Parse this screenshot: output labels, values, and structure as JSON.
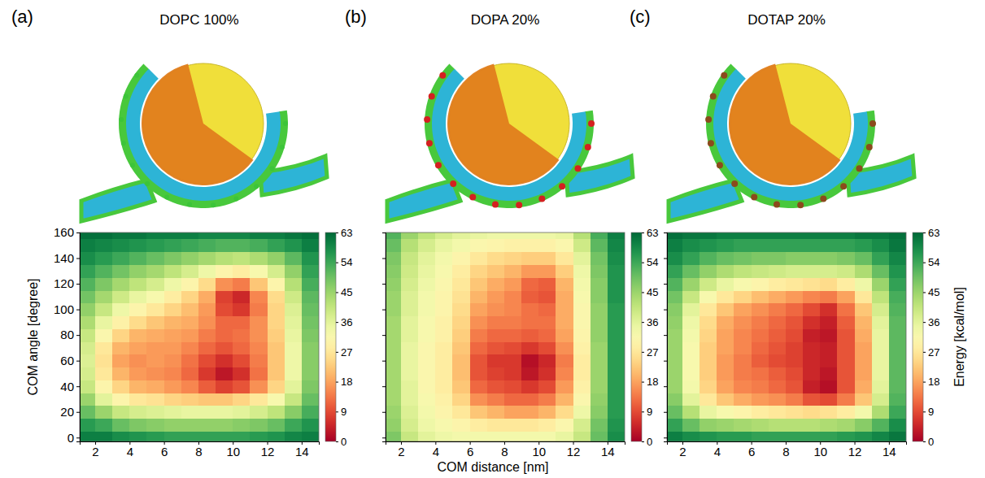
{
  "chart_data": [
    {
      "type": "heatmap",
      "title": "DOPC 100%",
      "annotations": [
        "(a)"
      ],
      "y_label": "COM angle [degree]",
      "xlim": [
        1.1,
        15
      ],
      "xticks": [
        2,
        4,
        6,
        8,
        10,
        12,
        14
      ],
      "ylim": [
        -3,
        160
      ],
      "yticks": [
        0,
        20,
        40,
        60,
        80,
        100,
        120,
        140,
        160
      ],
      "x": [
        1.5,
        2.5,
        3.5,
        4.5,
        5.5,
        6.5,
        7.5,
        8.5,
        9.5,
        10.5,
        11.5,
        12.5,
        13.5,
        14.5
      ],
      "y": [
        0,
        10,
        20,
        30,
        40,
        50,
        60,
        70,
        80,
        90,
        100,
        110,
        120,
        130,
        140,
        150,
        160
      ],
      "z": [
        [
          60,
          60,
          58,
          57,
          56,
          55,
          55,
          55,
          55,
          55,
          56,
          57,
          59,
          60
        ],
        [
          56,
          54,
          50,
          48,
          47,
          46,
          46,
          46,
          46,
          47,
          48,
          50,
          54,
          57
        ],
        [
          50,
          45,
          40,
          38,
          37,
          36,
          35,
          35,
          35,
          36,
          38,
          41,
          47,
          53
        ],
        [
          45,
          36,
          30,
          27,
          26,
          24,
          23,
          22,
          22,
          24,
          27,
          32,
          40,
          50
        ],
        [
          40,
          30,
          24,
          20,
          19,
          17,
          15,
          11,
          8,
          10,
          16,
          24,
          36,
          48
        ],
        [
          38,
          27,
          20,
          17,
          16,
          15,
          12,
          7,
          3,
          6,
          13,
          22,
          34,
          47
        ],
        [
          37,
          26,
          18,
          16,
          17,
          16,
          13,
          9,
          6,
          9,
          14,
          22,
          34,
          47
        ],
        [
          38,
          27,
          20,
          18,
          17,
          17,
          15,
          12,
          10,
          12,
          15,
          22,
          34,
          47
        ],
        [
          40,
          31,
          24,
          20,
          19,
          18,
          17,
          14,
          12,
          13,
          16,
          23,
          35,
          48
        ],
        [
          43,
          35,
          29,
          25,
          22,
          20,
          19,
          16,
          12,
          12,
          16,
          24,
          36,
          49
        ],
        [
          46,
          40,
          34,
          30,
          27,
          24,
          21,
          17,
          9,
          7,
          14,
          24,
          37,
          50
        ],
        [
          49,
          44,
          39,
          35,
          32,
          28,
          24,
          19,
          8,
          5,
          15,
          25,
          39,
          51
        ],
        [
          52,
          48,
          44,
          41,
          38,
          34,
          30,
          25,
          16,
          14,
          22,
          30,
          42,
          53
        ],
        [
          55,
          52,
          49,
          46,
          44,
          41,
          38,
          34,
          30,
          28,
          32,
          38,
          46,
          55
        ],
        [
          58,
          56,
          54,
          52,
          50,
          48,
          46,
          44,
          42,
          41,
          43,
          46,
          51,
          57
        ],
        [
          60,
          59,
          58,
          57,
          56,
          55,
          54,
          53,
          52,
          52,
          53,
          55,
          57,
          60
        ],
        [
          62,
          62,
          61,
          61,
          60,
          60,
          60,
          59,
          59,
          59,
          60,
          60,
          61,
          62
        ]
      ],
      "colorbar": {
        "range": [
          0,
          63
        ],
        "ticks": [
          0,
          9,
          18,
          27,
          36,
          45,
          54,
          63
        ]
      }
    },
    {
      "type": "heatmap",
      "title": "DOPA 20%",
      "annotations": [
        "(b)"
      ],
      "x_label": "COM distance [nm]",
      "tick_labels": "x",
      "xlim": [
        1.1,
        15
      ],
      "xticks": [
        2,
        4,
        6,
        8,
        10,
        12,
        14
      ],
      "ylim": [
        -3,
        160
      ],
      "yticks": [
        0,
        20,
        40,
        60,
        80,
        100,
        120,
        140,
        160
      ],
      "x": [
        1.5,
        2.5,
        3.5,
        4.5,
        5.5,
        6.5,
        7.5,
        8.5,
        9.5,
        10.5,
        11.5,
        12.5,
        13.5,
        14.5
      ],
      "y": [
        0,
        10,
        20,
        30,
        40,
        50,
        60,
        70,
        80,
        90,
        100,
        110,
        120,
        130,
        140,
        150,
        160
      ],
      "z": [
        [
          48,
          40,
          36,
          34,
          33,
          33,
          33,
          33,
          33,
          33,
          35,
          40,
          50,
          58
        ],
        [
          46,
          38,
          34,
          32,
          30,
          28,
          27,
          27,
          27,
          28,
          31,
          38,
          49,
          57
        ],
        [
          45,
          37,
          33,
          30,
          27,
          22,
          20,
          18,
          18,
          20,
          25,
          34,
          47,
          56
        ],
        [
          44,
          36,
          32,
          29,
          24,
          16,
          14,
          12,
          12,
          14,
          20,
          31,
          46,
          56
        ],
        [
          44,
          36,
          31,
          28,
          22,
          12,
          10,
          9,
          7,
          9,
          17,
          29,
          45,
          56
        ],
        [
          44,
          35,
          31,
          28,
          21,
          10,
          8,
          7,
          3,
          6,
          15,
          28,
          45,
          56
        ],
        [
          44,
          35,
          31,
          28,
          21,
          10,
          7,
          7,
          2,
          5,
          14,
          28,
          45,
          56
        ],
        [
          44,
          35,
          31,
          28,
          22,
          12,
          10,
          9,
          7,
          9,
          16,
          29,
          45,
          56
        ],
        [
          44,
          36,
          32,
          29,
          23,
          14,
          12,
          12,
          11,
          12,
          18,
          30,
          46,
          56
        ],
        [
          44,
          36,
          32,
          29,
          24,
          16,
          14,
          14,
          13,
          13,
          19,
          31,
          46,
          56
        ],
        [
          45,
          37,
          33,
          30,
          25,
          18,
          16,
          15,
          13,
          12,
          19,
          31,
          46,
          56
        ],
        [
          45,
          37,
          33,
          30,
          26,
          20,
          17,
          15,
          11,
          10,
          19,
          32,
          47,
          57
        ],
        [
          46,
          38,
          34,
          31,
          27,
          22,
          19,
          17,
          12,
          11,
          20,
          33,
          47,
          57
        ],
        [
          47,
          39,
          35,
          32,
          28,
          24,
          22,
          20,
          17,
          17,
          23,
          34,
          48,
          57
        ],
        [
          48,
          40,
          36,
          33,
          30,
          27,
          25,
          24,
          23,
          23,
          27,
          36,
          49,
          58
        ],
        [
          50,
          42,
          38,
          35,
          33,
          31,
          30,
          29,
          29,
          29,
          31,
          39,
          51,
          59
        ],
        [
          52,
          45,
          41,
          38,
          36,
          35,
          34,
          34,
          34,
          34,
          35,
          42,
          53,
          60
        ]
      ],
      "colorbar": {
        "range": [
          0,
          63
        ],
        "ticks": [
          0,
          9,
          18,
          27,
          36,
          45,
          54,
          63
        ]
      }
    },
    {
      "type": "heatmap",
      "title": "DOTAP 20%",
      "annotations": [
        "(c)"
      ],
      "tick_labels": "x",
      "xlim": [
        1.1,
        15
      ],
      "xticks": [
        2,
        4,
        6,
        8,
        10,
        12,
        14
      ],
      "ylim": [
        -3,
        160
      ],
      "yticks": [
        0,
        20,
        40,
        60,
        80,
        100,
        120,
        140,
        160
      ],
      "x": [
        1.5,
        2.5,
        3.5,
        4.5,
        5.5,
        6.5,
        7.5,
        8.5,
        9.5,
        10.5,
        11.5,
        12.5,
        13.5,
        14.5
      ],
      "y": [
        0,
        10,
        20,
        30,
        40,
        50,
        60,
        70,
        80,
        90,
        100,
        110,
        120,
        130,
        140,
        150,
        160
      ],
      "z": [
        [
          60,
          58,
          57,
          56,
          56,
          55,
          55,
          55,
          55,
          55,
          56,
          57,
          59,
          61
        ],
        [
          55,
          50,
          46,
          45,
          44,
          43,
          42,
          42,
          42,
          43,
          44,
          47,
          52,
          58
        ],
        [
          50,
          42,
          35,
          32,
          30,
          28,
          27,
          26,
          25,
          26,
          28,
          33,
          43,
          54
        ],
        [
          47,
          36,
          27,
          22,
          19,
          17,
          16,
          14,
          10,
          9,
          14,
          22,
          38,
          52
        ],
        [
          45,
          33,
          24,
          18,
          15,
          14,
          12,
          10,
          4,
          2,
          10,
          19,
          36,
          51
        ],
        [
          45,
          32,
          23,
          17,
          14,
          13,
          11,
          9,
          5,
          3,
          10,
          18,
          35,
          51
        ],
        [
          45,
          32,
          23,
          17,
          14,
          11,
          9,
          8,
          5,
          4,
          10,
          18,
          35,
          51
        ],
        [
          45,
          32,
          23,
          18,
          15,
          12,
          10,
          8,
          5,
          4,
          10,
          18,
          35,
          51
        ],
        [
          45,
          33,
          24,
          18,
          15,
          13,
          11,
          9,
          4,
          3,
          10,
          19,
          35,
          51
        ],
        [
          46,
          34,
          25,
          19,
          16,
          14,
          12,
          10,
          6,
          4,
          11,
          20,
          36,
          51
        ],
        [
          47,
          36,
          27,
          22,
          18,
          16,
          14,
          12,
          9,
          6,
          13,
          22,
          38,
          52
        ],
        [
          49,
          40,
          32,
          27,
          24,
          21,
          19,
          17,
          15,
          14,
          18,
          27,
          41,
          53
        ],
        [
          52,
          45,
          39,
          35,
          32,
          30,
          28,
          27,
          26,
          25,
          28,
          34,
          45,
          55
        ],
        [
          55,
          50,
          46,
          43,
          41,
          40,
          39,
          38,
          38,
          38,
          39,
          43,
          50,
          57
        ],
        [
          58,
          55,
          52,
          50,
          49,
          48,
          48,
          47,
          47,
          47,
          48,
          50,
          55,
          59
        ],
        [
          60,
          58,
          57,
          56,
          55,
          55,
          55,
          55,
          55,
          55,
          55,
          56,
          58,
          61
        ],
        [
          62,
          61,
          61,
          60,
          60,
          60,
          60,
          60,
          60,
          60,
          60,
          61,
          61,
          62
        ]
      ],
      "colorbar": {
        "range": [
          0,
          63
        ],
        "ticks": [
          0,
          9,
          18,
          27,
          36,
          45,
          54,
          63
        ],
        "label": "Energy [kcal/mol]"
      }
    }
  ]
}
